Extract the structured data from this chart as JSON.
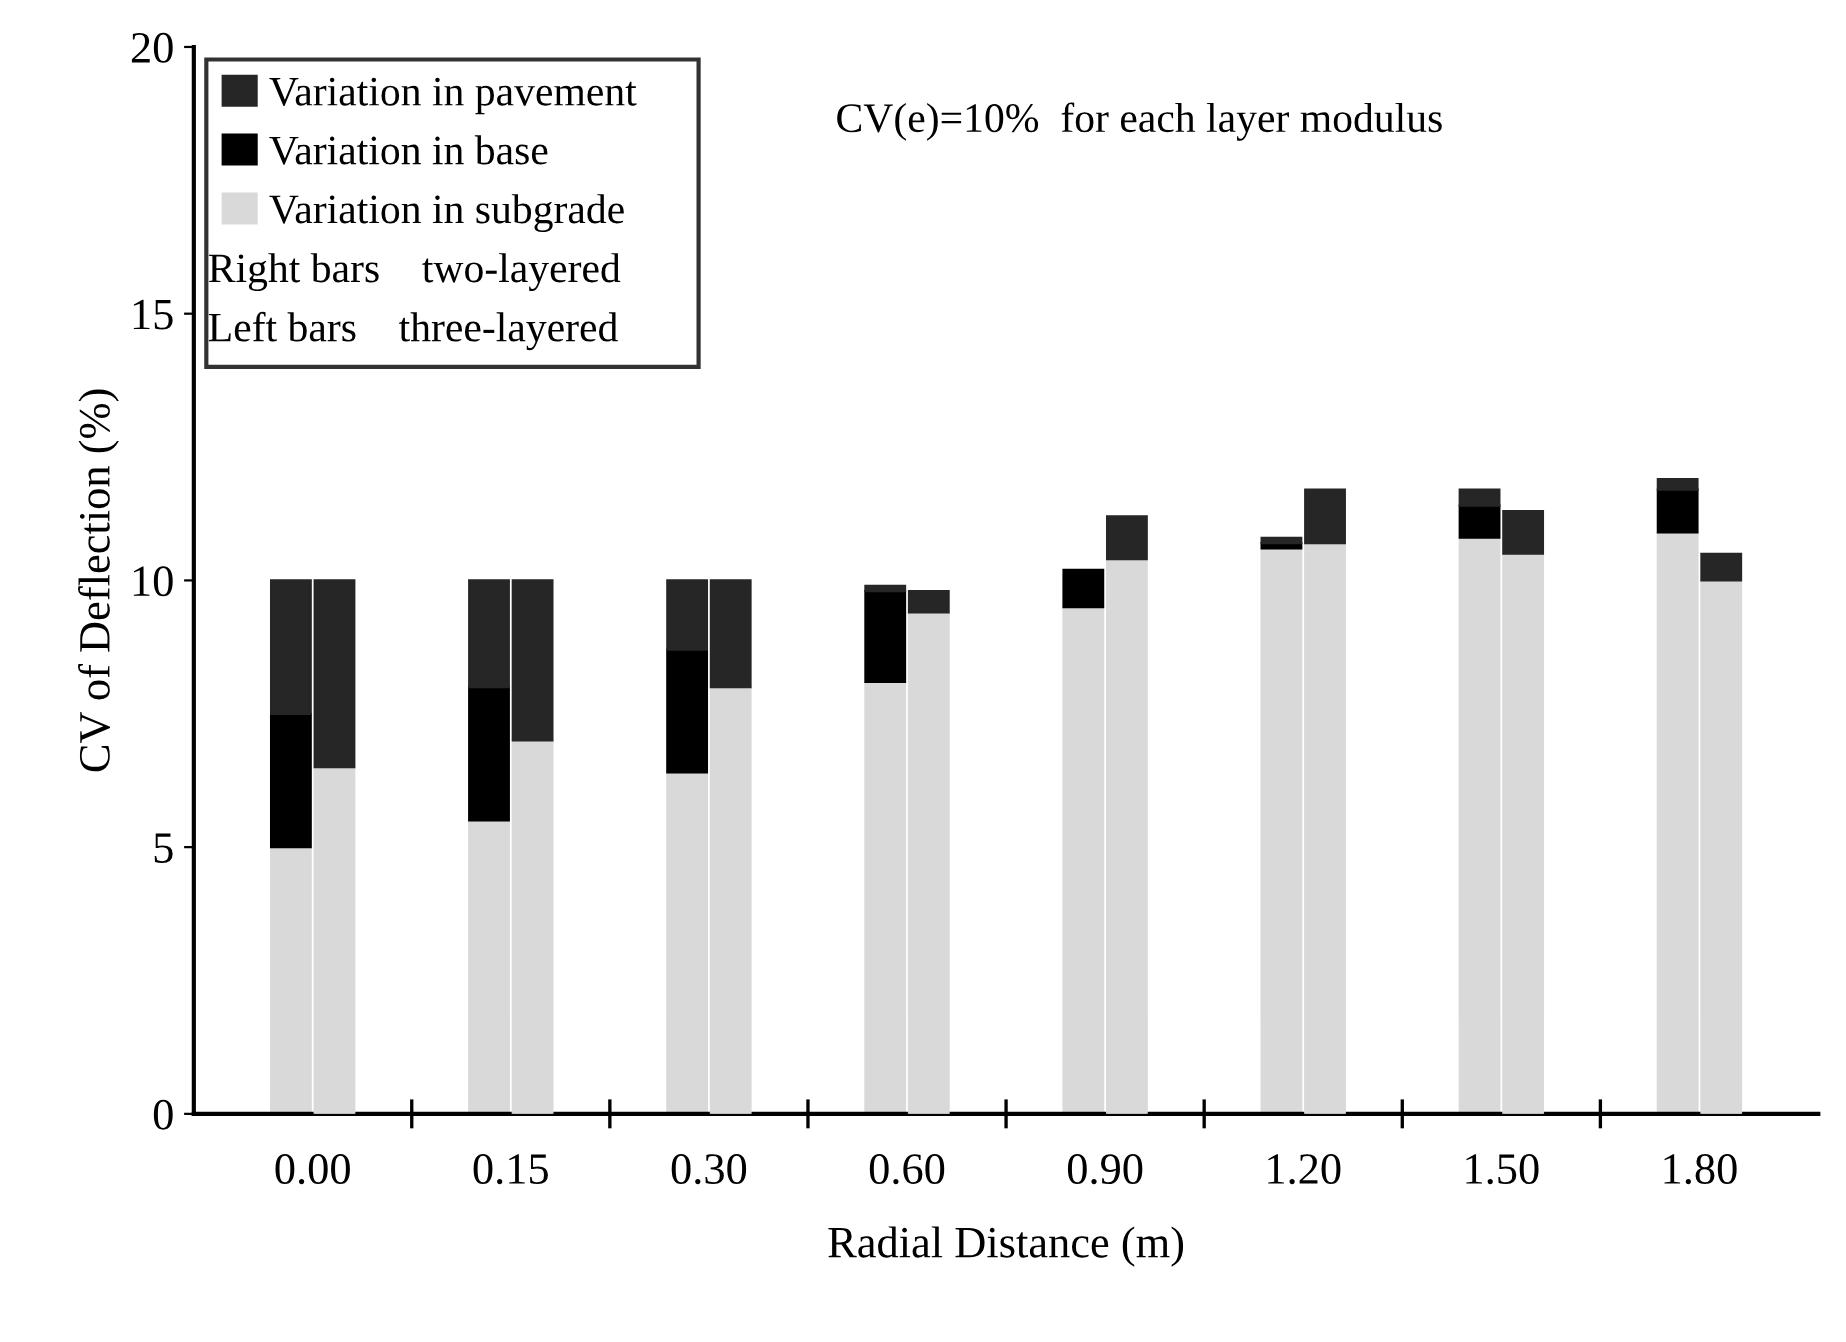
{
  "chart_data": [
    {
      "type": "bar",
      "stacked": true,
      "xlabel": "Radial Distance (m)",
      "ylabel": "CV of Deflection (%)",
      "categories": [
        "0.00",
        "0.15",
        "0.30",
        "0.60",
        "0.90",
        "1.20",
        "1.50",
        "1.80"
      ],
      "series": [
        {
          "name": "Variation in subgrade",
          "color": "#d9d9d9",
          "values": [
            5.0,
            5.5,
            6.4,
            8.1,
            9.5,
            10.6,
            10.8,
            10.9
          ]
        },
        {
          "name": "Variation in base",
          "color": "#000000",
          "values": [
            2.5,
            2.5,
            2.3,
            1.7,
            0.7,
            0.1,
            0.6,
            0.8
          ]
        },
        {
          "name": "Variation in pavement",
          "color": "#262626",
          "values": [
            2.5,
            2.0,
            1.3,
            0.1,
            null,
            0.1,
            0.3,
            0.2
          ]
        }
      ],
      "ylim": [
        0,
        20
      ],
      "yticks": [
        0,
        5,
        10,
        15,
        20
      ],
      "legend": "top left",
      "grid": false,
      "annotations": [
        "Right bars    two-layered",
        "Left bars    three-layered",
        "CV(e)=10%  for each layer modulus"
      ]
    },
    {
      "type": "bar",
      "stacked": true,
      "tick_labels": false,
      "categories": [
        "0.00",
        "0.15",
        "0.30",
        "0.60",
        "0.90",
        "1.20",
        "1.50",
        "1.80"
      ],
      "series": [
        {
          "color": "#d9d9d9",
          "values": [
            6.5,
            7.0,
            8.0,
            9.4,
            10.4,
            10.7,
            10.5,
            10.0
          ]
        },
        {
          "color": "#262626",
          "values": [
            3.5,
            3.0,
            2.0,
            0.4,
            0.8,
            1.0,
            0.8,
            0.5
          ]
        }
      ],
      "ylim": [
        0,
        20
      ]
    }
  ]
}
